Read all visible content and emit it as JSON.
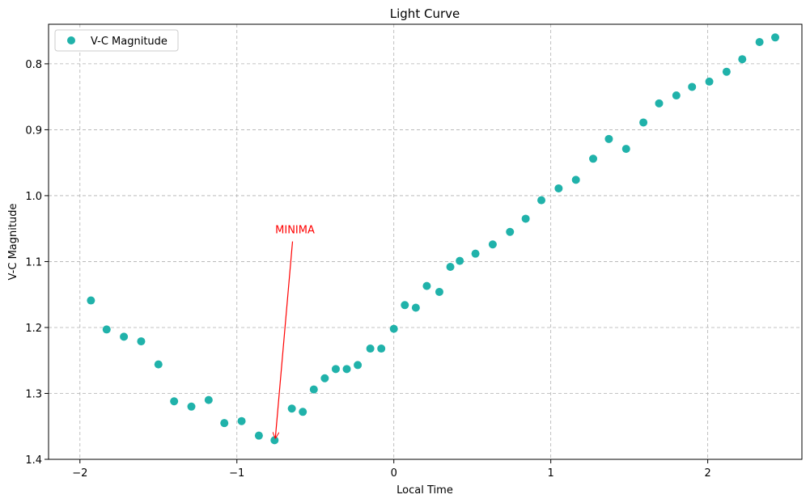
{
  "chart_data": {
    "type": "scatter",
    "title": "Light Curve",
    "xlabel": "Local Time",
    "ylabel": "V-C Magnitude",
    "xlim": [
      -2.2,
      2.6
    ],
    "ylim": [
      1.4,
      0.74
    ],
    "y_inverted": true,
    "grid": true,
    "grid_style": "dashed",
    "legend_position": "top-left",
    "x_ticks": [
      -2,
      -1,
      0,
      1,
      2
    ],
    "x_tick_labels": [
      "−2",
      "−1",
      "0",
      "1",
      "2"
    ],
    "y_ticks": [
      0.8,
      0.9,
      1.0,
      1.1,
      1.2,
      1.3,
      1.4
    ],
    "y_tick_labels": [
      "0.8",
      "0.9",
      "1.0",
      "1.1",
      "1.2",
      "1.3",
      "1.4"
    ],
    "series": [
      {
        "name": "V-C Magnitude",
        "color": "#20b2aa",
        "x": [
          -1.93,
          -1.83,
          -1.72,
          -1.61,
          -1.5,
          -1.4,
          -1.29,
          -1.18,
          -1.08,
          -0.97,
          -0.86,
          -0.76,
          -0.65,
          -0.58,
          -0.51,
          -0.44,
          -0.37,
          -0.3,
          -0.23,
          -0.15,
          -0.08,
          0.0,
          0.07,
          0.14,
          0.21,
          0.29,
          0.36,
          0.42,
          0.52,
          0.63,
          0.74,
          0.84,
          0.94,
          1.05,
          1.16,
          1.27,
          1.37,
          1.48,
          1.59,
          1.69,
          1.8,
          1.9,
          2.01,
          2.12,
          2.22,
          2.33,
          2.43
        ],
        "y": [
          1.159,
          1.203,
          1.214,
          1.221,
          1.256,
          1.312,
          1.32,
          1.31,
          1.345,
          1.342,
          1.364,
          1.371,
          1.323,
          1.328,
          1.294,
          1.277,
          1.263,
          1.263,
          1.257,
          1.232,
          1.232,
          1.202,
          1.166,
          1.17,
          1.137,
          1.146,
          1.108,
          1.099,
          1.088,
          1.074,
          1.055,
          1.035,
          1.007,
          0.989,
          0.976,
          0.944,
          0.914,
          0.929,
          0.889,
          0.86,
          0.848,
          0.835,
          0.827,
          0.812,
          0.793,
          0.767,
          0.76
        ]
      }
    ],
    "annotations": [
      {
        "text": "MINIMA",
        "color": "#ff0000",
        "x": -0.76,
        "y": 1.371,
        "text_x": -0.63,
        "text_y": 1.067
      }
    ]
  }
}
